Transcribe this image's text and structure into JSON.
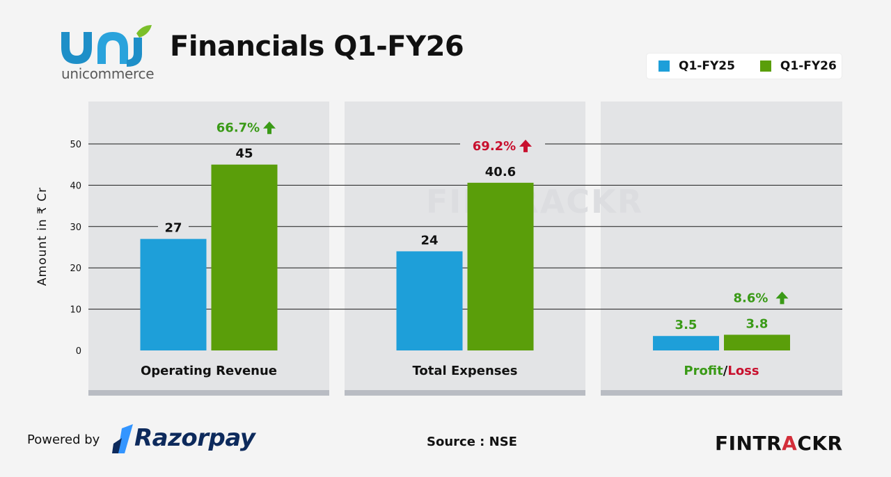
{
  "header": {
    "brand": "unicommerce",
    "title": "Financials Q1-FY26"
  },
  "legend": [
    {
      "label": "Q1-FY25",
      "color": "#1e9fd9"
    },
    {
      "label": "Q1-FY26",
      "color": "#5a9e0a"
    }
  ],
  "footer": {
    "powered_by": "Powered by",
    "razorpay": "Razorpay",
    "source": "Source : NSE",
    "fintrackr_a": "FINTR",
    "fintrackr_b": "A",
    "fintrackr_c": "CKR"
  },
  "chart_data": {
    "type": "bar",
    "ylabel": "Amount in ₹ Cr",
    "ylim": [
      0,
      50
    ],
    "yticks": [
      0,
      10,
      20,
      30,
      40,
      50
    ],
    "grid": true,
    "categories": [
      "Operating Revenue",
      "Total Expenses",
      "Profit/Loss"
    ],
    "series": [
      {
        "name": "Q1-FY25",
        "color": "#1e9fd9",
        "values": [
          27,
          24,
          3.5
        ],
        "labels": [
          "27",
          "24",
          "3.5"
        ]
      },
      {
        "name": "Q1-FY26",
        "color": "#5a9e0a",
        "values": [
          45,
          40.6,
          3.8
        ],
        "labels": [
          "45",
          "40.6",
          "3.8"
        ]
      }
    ],
    "changes": [
      {
        "text": "66.7%",
        "direction": "up",
        "color": "#3a9a17"
      },
      {
        "text": "69.2%",
        "direction": "up",
        "color": "#c8102e"
      },
      {
        "text": "8.6%",
        "direction": "up",
        "color": "#3a9a17"
      }
    ],
    "category_label_parts": [
      [
        {
          "text": "Operating Revenue",
          "color": "#111111"
        }
      ],
      [
        {
          "text": "Total Expenses",
          "color": "#111111"
        }
      ],
      [
        {
          "text": "Profit",
          "color": "#3a9a17"
        },
        {
          "text": "/",
          "color": "#111111"
        },
        {
          "text": "Loss",
          "color": "#c8102e"
        }
      ]
    ],
    "value_label_colors": [
      "#111111",
      "#111111",
      "#3a9a17"
    ]
  }
}
